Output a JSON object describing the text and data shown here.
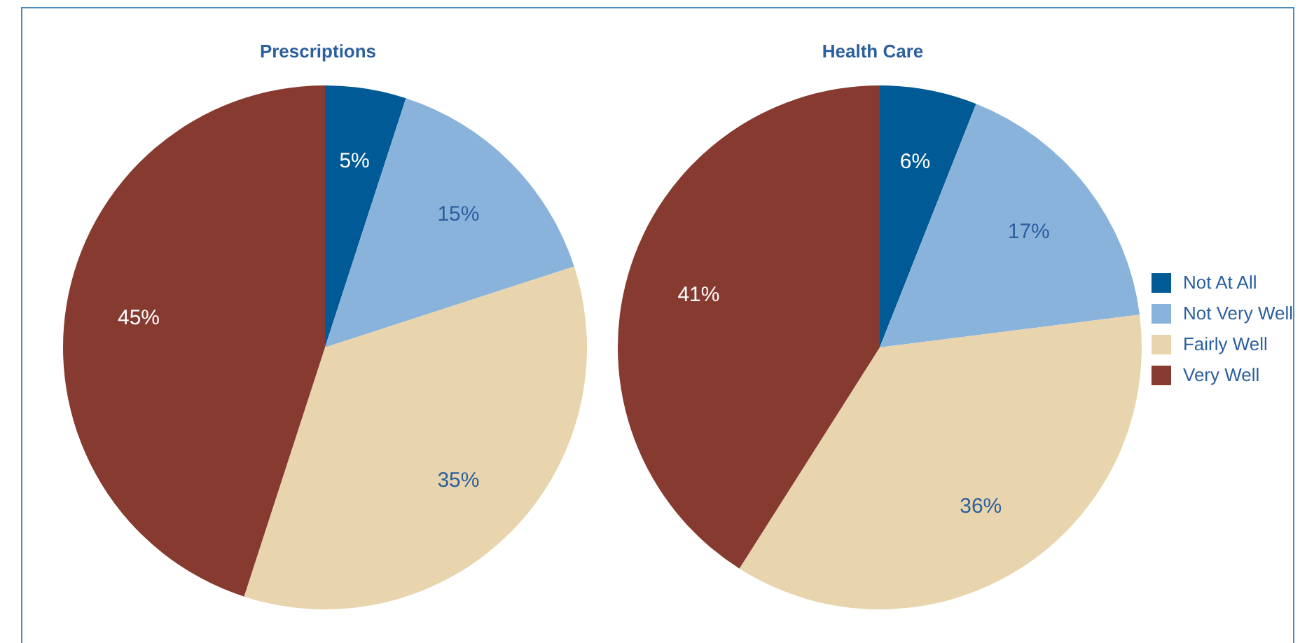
{
  "chart_data": [
    {
      "type": "pie",
      "title": "Prescriptions",
      "categories": [
        null,
        null,
        null,
        null
      ],
      "values": [
        5,
        15,
        35,
        45
      ],
      "value_labels": [
        "5%",
        "15%",
        "35%",
        "45%"
      ],
      "colors": [
        "#005a96",
        "#8ab3dc",
        "#e8d4ad",
        "#873a2f"
      ],
      "legend": false
    },
    {
      "type": "pie",
      "title": "Health Care",
      "categories": [
        "Not At All",
        "Not Very Well",
        "Fairly Well",
        "Very Well"
      ],
      "values": [
        6,
        17,
        36,
        41
      ],
      "value_labels": [
        "6%",
        "17%",
        "36%",
        "41%"
      ],
      "colors": [
        "#005a96",
        "#8ab3dc",
        "#e8d4ad",
        "#873a2f"
      ],
      "legend": "right"
    }
  ]
}
